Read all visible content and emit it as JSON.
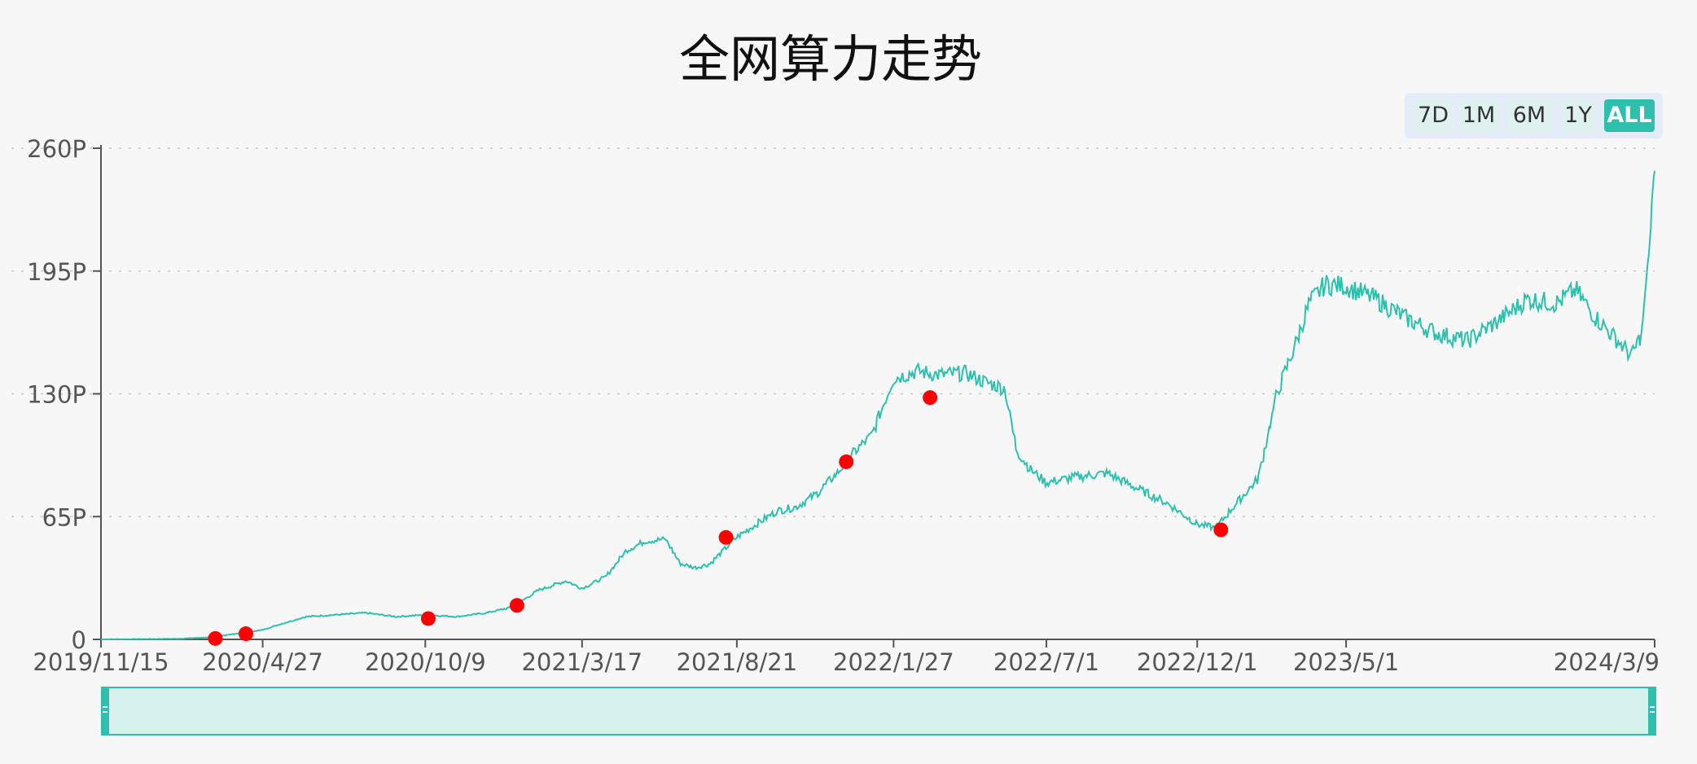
{
  "chart_data": {
    "type": "line",
    "title": "全网算力走势",
    "y_ticks": [
      "0",
      "65P",
      "130P",
      "195P",
      "260P"
    ],
    "x_ticks": [
      "2019/11/15",
      "2020/4/27",
      "2020/10/9",
      "2021/3/17",
      "2021/8/21",
      "2022/1/27",
      "2022/7/1",
      "2022/12/1",
      "2023/5/1",
      "2024/3/9"
    ],
    "x_tick_dates": [
      "2019-11-15",
      "2020-04-27",
      "2020-10-09",
      "2021-03-17",
      "2021-08-21",
      "2022-01-27",
      "2022-07-01",
      "2022-12-01",
      "2023-05-01",
      "2024-03-09"
    ],
    "ylim": [
      0,
      260
    ],
    "y_unit": "P",
    "grid": "horizontal dashed",
    "series": [
      {
        "color": "#2fc0ad",
        "points": [
          [
            "2019-11-15",
            0
          ],
          [
            "2020-02-01",
            0.3
          ],
          [
            "2020-03-01",
            1
          ],
          [
            "2020-04-01",
            3
          ],
          [
            "2020-04-27",
            5
          ],
          [
            "2020-05-15",
            8
          ],
          [
            "2020-06-10",
            12
          ],
          [
            "2020-07-10",
            13
          ],
          [
            "2020-08-10",
            14
          ],
          [
            "2020-09-10",
            12
          ],
          [
            "2020-10-09",
            13
          ],
          [
            "2020-11-10",
            12
          ],
          [
            "2020-12-10",
            14
          ],
          [
            "2021-01-05",
            17
          ],
          [
            "2021-02-01",
            26
          ],
          [
            "2021-03-01",
            31
          ],
          [
            "2021-03-17",
            27
          ],
          [
            "2021-04-10",
            33
          ],
          [
            "2021-05-01",
            47
          ],
          [
            "2021-05-20",
            52
          ],
          [
            "2021-06-10",
            53
          ],
          [
            "2021-06-25",
            40
          ],
          [
            "2021-07-10",
            38
          ],
          [
            "2021-07-25",
            40
          ],
          [
            "2021-08-21",
            54
          ],
          [
            "2021-09-10",
            61
          ],
          [
            "2021-10-01",
            68
          ],
          [
            "2021-10-20",
            70
          ],
          [
            "2021-11-10",
            77
          ],
          [
            "2021-12-01",
            88
          ],
          [
            "2021-12-20",
            100
          ],
          [
            "2022-01-05",
            108
          ],
          [
            "2022-01-27",
            138
          ],
          [
            "2022-02-20",
            142
          ],
          [
            "2022-03-15",
            140
          ],
          [
            "2022-04-10",
            141
          ],
          [
            "2022-05-01",
            136
          ],
          [
            "2022-05-20",
            133
          ],
          [
            "2022-06-01",
            100
          ],
          [
            "2022-06-15",
            90
          ],
          [
            "2022-07-01",
            83
          ],
          [
            "2022-08-01",
            86
          ],
          [
            "2022-09-01",
            88
          ],
          [
            "2022-10-01",
            80
          ],
          [
            "2022-11-01",
            72
          ],
          [
            "2022-12-01",
            61
          ],
          [
            "2022-12-20",
            59
          ],
          [
            "2023-01-10",
            72
          ],
          [
            "2023-02-01",
            85
          ],
          [
            "2023-02-20",
            130
          ],
          [
            "2023-03-10",
            155
          ],
          [
            "2023-03-25",
            178
          ],
          [
            "2023-04-10",
            188
          ],
          [
            "2023-05-01",
            187
          ],
          [
            "2023-06-01",
            180
          ],
          [
            "2023-07-01",
            170
          ],
          [
            "2023-08-01",
            162
          ],
          [
            "2023-09-01",
            158
          ],
          [
            "2023-10-01",
            168
          ],
          [
            "2023-11-01",
            180
          ],
          [
            "2023-12-01",
            178
          ],
          [
            "2023-12-20",
            185
          ],
          [
            "2024-01-10",
            170
          ],
          [
            "2024-02-01",
            158
          ],
          [
            "2024-02-15",
            150
          ],
          [
            "2024-02-25",
            162
          ],
          [
            "2024-03-02",
            195
          ],
          [
            "2024-03-09",
            248
          ]
        ]
      }
    ],
    "markers": [
      {
        "date": "2020-03-10",
        "value": 0.5
      },
      {
        "date": "2020-04-10",
        "value": 3
      },
      {
        "date": "2020-10-12",
        "value": 11
      },
      {
        "date": "2021-01-10",
        "value": 18
      },
      {
        "date": "2021-08-10",
        "value": 54
      },
      {
        "date": "2021-12-10",
        "value": 94
      },
      {
        "date": "2022-03-05",
        "value": 128
      },
      {
        "date": "2022-12-25",
        "value": 58
      }
    ],
    "marker_color": "#ff0000",
    "line_color": "#2fc0ad"
  },
  "range_buttons": {
    "items": [
      {
        "label": "7D",
        "active": false
      },
      {
        "label": "1M",
        "active": false
      },
      {
        "label": "6M",
        "active": false
      },
      {
        "label": "1Y",
        "active": false
      },
      {
        "label": "ALL",
        "active": true
      }
    ]
  },
  "colors": {
    "accent": "#2fc0ad",
    "navigator_fill": "#d4f1ee",
    "background": "#f7f7f7"
  }
}
